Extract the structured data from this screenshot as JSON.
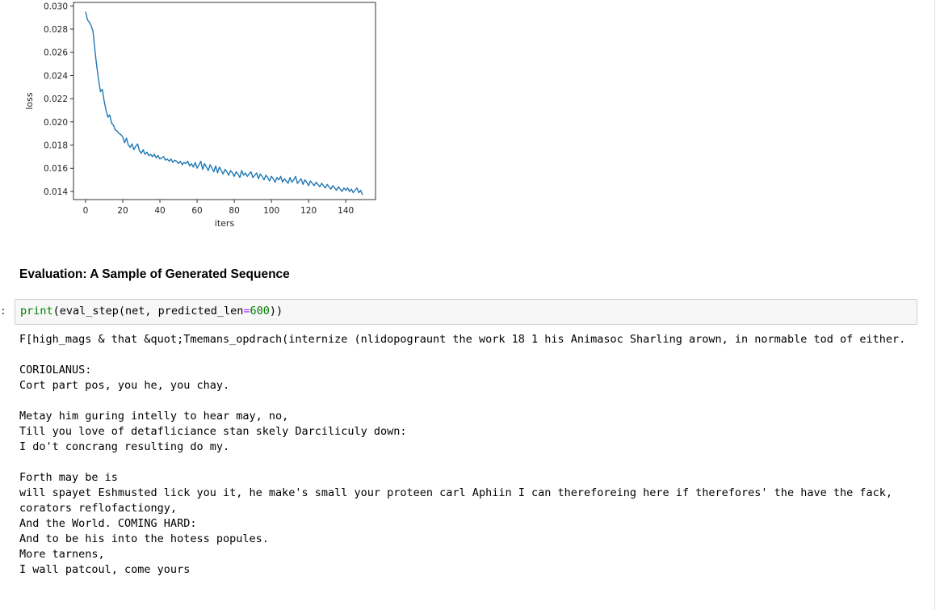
{
  "chart_data": {
    "type": "line",
    "title": "",
    "xlabel": "iters",
    "ylabel": "loss",
    "xlim": [
      -6.5,
      156
    ],
    "ylim": [
      0.0133,
      0.0303
    ],
    "xticks": [
      0,
      20,
      40,
      60,
      80,
      100,
      120,
      140
    ],
    "yticks": [
      0.014,
      0.016,
      0.018,
      0.02,
      0.022,
      0.024,
      0.026,
      0.028,
      0.03
    ],
    "xtick_labels": [
      "0",
      "20",
      "40",
      "60",
      "80",
      "100",
      "120",
      "140"
    ],
    "ytick_labels": [
      "0.014",
      "0.016",
      "0.018",
      "0.020",
      "0.022",
      "0.024",
      "0.026",
      "0.028",
      "0.030"
    ],
    "grid": false,
    "line_color": "#1f77b4",
    "series": [
      {
        "x": [
          0,
          1,
          2,
          3,
          4,
          5,
          6,
          7,
          8,
          9,
          10,
          11,
          12,
          13,
          14,
          15,
          16,
          17,
          18,
          19,
          20,
          21,
          22,
          23,
          24,
          25,
          26,
          27,
          28,
          29,
          30,
          31,
          32,
          33,
          34,
          35,
          36,
          37,
          38,
          39,
          40,
          41,
          42,
          43,
          44,
          45,
          46,
          47,
          48,
          49,
          50,
          51,
          52,
          53,
          54,
          55,
          56,
          57,
          58,
          59,
          60,
          61,
          62,
          63,
          64,
          65,
          66,
          67,
          68,
          69,
          70,
          71,
          72,
          73,
          74,
          75,
          76,
          77,
          78,
          79,
          80,
          81,
          82,
          83,
          84,
          85,
          86,
          87,
          88,
          89,
          90,
          91,
          92,
          93,
          94,
          95,
          96,
          97,
          98,
          99,
          100,
          101,
          102,
          103,
          104,
          105,
          106,
          107,
          108,
          109,
          110,
          111,
          112,
          113,
          114,
          115,
          116,
          117,
          118,
          119,
          120,
          121,
          122,
          123,
          124,
          125,
          126,
          127,
          128,
          129,
          130,
          131,
          132,
          133,
          134,
          135,
          136,
          137,
          138,
          139,
          140,
          141,
          142,
          143,
          144,
          145,
          146,
          147,
          148,
          149
        ],
        "y": [
          0.0295,
          0.0288,
          0.0286,
          0.0283,
          0.0278,
          0.0262,
          0.0248,
          0.0236,
          0.0226,
          0.0228,
          0.0218,
          0.021,
          0.0204,
          0.0206,
          0.0199,
          0.0197,
          0.0193,
          0.0192,
          0.019,
          0.0189,
          0.0187,
          0.0182,
          0.0186,
          0.018,
          0.0178,
          0.0181,
          0.0176,
          0.0179,
          0.0181,
          0.0175,
          0.0173,
          0.0176,
          0.0172,
          0.0174,
          0.0171,
          0.0172,
          0.017,
          0.0172,
          0.0169,
          0.0171,
          0.0168,
          0.0169,
          0.017,
          0.0167,
          0.0168,
          0.0166,
          0.0168,
          0.0165,
          0.0167,
          0.0166,
          0.0164,
          0.0166,
          0.0163,
          0.0165,
          0.0164,
          0.0166,
          0.0162,
          0.0164,
          0.0161,
          0.0165,
          0.016,
          0.0163,
          0.0166,
          0.0159,
          0.0164,
          0.0161,
          0.0158,
          0.0163,
          0.016,
          0.0157,
          0.0162,
          0.0156,
          0.0161,
          0.0158,
          0.0155,
          0.0159,
          0.0157,
          0.0154,
          0.0158,
          0.0156,
          0.0153,
          0.0157,
          0.0155,
          0.0152,
          0.0158,
          0.0154,
          0.0156,
          0.0153,
          0.0155,
          0.0157,
          0.0152,
          0.0154,
          0.0156,
          0.0151,
          0.0155,
          0.0153,
          0.015,
          0.0154,
          0.0152,
          0.0149,
          0.0153,
          0.0151,
          0.0148,
          0.0152,
          0.015,
          0.0153,
          0.0148,
          0.0151,
          0.0149,
          0.0147,
          0.0152,
          0.0148,
          0.015,
          0.0153,
          0.0147,
          0.0149,
          0.0151,
          0.0146,
          0.015,
          0.0148,
          0.0145,
          0.0149,
          0.0147,
          0.0145,
          0.0148,
          0.0146,
          0.0144,
          0.0147,
          0.0145,
          0.0143,
          0.0146,
          0.0144,
          0.0142,
          0.0145,
          0.0143,
          0.0141,
          0.0144,
          0.0142,
          0.014,
          0.0143,
          0.0141,
          0.0143,
          0.014,
          0.0142,
          0.0139,
          0.0141,
          0.0143,
          0.0139,
          0.0141,
          0.0137
        ]
      }
    ]
  },
  "notebook": {
    "heading": "Evaluation: A Sample of Generated Sequence",
    "prompt_marker": ":",
    "code": {
      "func": "print",
      "open": "(eval_step(net, predicted_len",
      "eq": "=",
      "num": "600",
      "close": "))"
    },
    "output": "F[high_mags & that &quot;Tmemans_opdrach(internize (nlidopograunt the work 18 1 his Animasoc Sharling arown, in normable tod of either.\n\nCORIOLANUS:\nCort part pos, you he, you chay.\n\nMetay him guring intelly to hear may, no,\nTill you love of detafliciance stan skely Darciliculy down:\nI do't concrang resulting do my.\n\nForth may be is\nwill spayet Eshmusted lick you it, he make's small your proteen carl Aphiin I can thereforeing here if therefores' the have the fack, corators reflofactiongy,\nAnd the World. COMING HARD:\nAnd to be his into the hotess popules.\nMore tarnens,\nI wall patcoul, come yours"
  }
}
